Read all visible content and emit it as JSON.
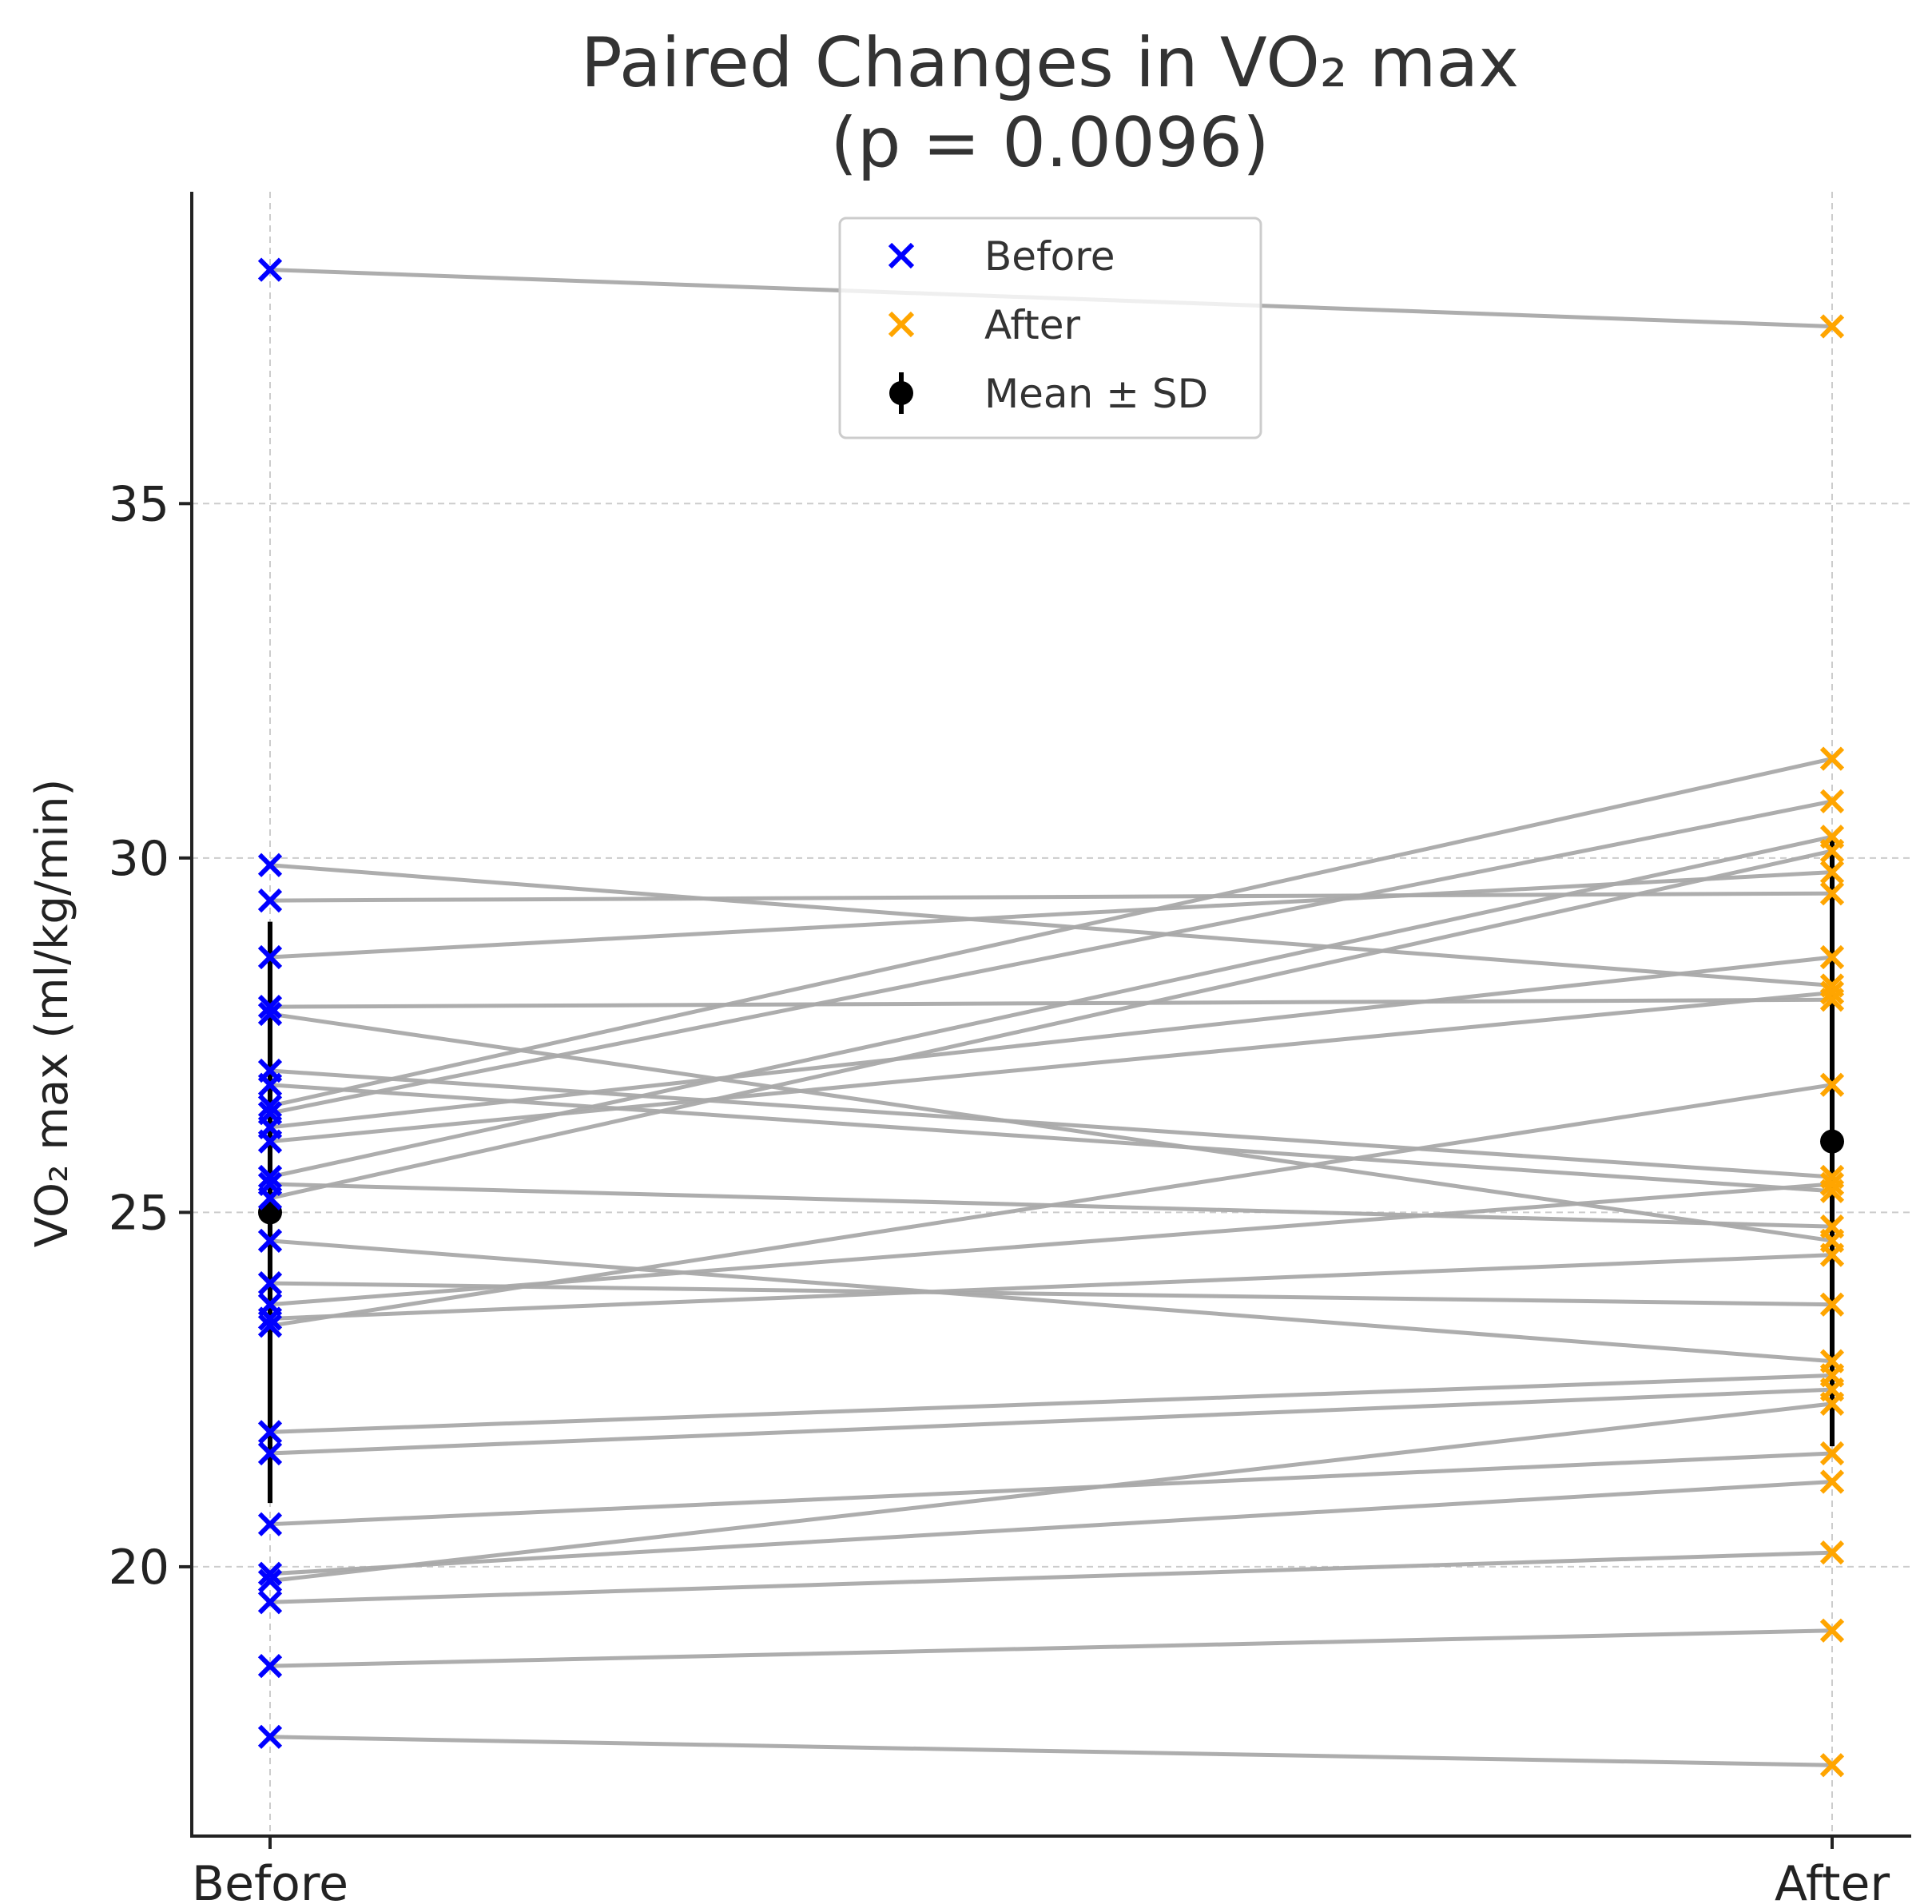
{
  "chart_data": {
    "type": "scatter",
    "title_line1": "Paired Changes in VO₂ max",
    "title_line2": "(p = 0.0096)",
    "ylabel": "VO₂ max (ml/kg/min)",
    "categories": [
      "Before",
      "After"
    ],
    "ylim": [
      16.2,
      39.4
    ],
    "yticks": [
      20,
      25,
      30,
      35
    ],
    "grid": true,
    "legend_position": "top-center",
    "legend": [
      {
        "label": "Before",
        "marker": "x",
        "color": "#0000ff"
      },
      {
        "label": "After",
        "marker": "x",
        "color": "#ffa500"
      },
      {
        "label": "Mean ± SD",
        "marker": "errorbar",
        "color": "#000000"
      }
    ],
    "pairs": [
      {
        "before": 38.3,
        "after": 37.5
      },
      {
        "before": 29.9,
        "after": 28.2
      },
      {
        "before": 29.4,
        "after": 29.5
      },
      {
        "before": 28.6,
        "after": 29.8
      },
      {
        "before": 27.9,
        "after": 28.0
      },
      {
        "before": 27.8,
        "after": 24.6
      },
      {
        "before": 27.0,
        "after": 25.5
      },
      {
        "before": 26.8,
        "after": 25.3
      },
      {
        "before": 26.5,
        "after": 31.4
      },
      {
        "before": 26.4,
        "after": 30.8
      },
      {
        "before": 26.2,
        "after": 28.6
      },
      {
        "before": 26.0,
        "after": 28.1
      },
      {
        "before": 25.5,
        "after": 30.3
      },
      {
        "before": 25.4,
        "after": 24.8
      },
      {
        "before": 25.2,
        "after": 30.1
      },
      {
        "before": 24.6,
        "after": 22.9
      },
      {
        "before": 24.0,
        "after": 23.7
      },
      {
        "before": 23.7,
        "after": 25.4
      },
      {
        "before": 23.5,
        "after": 24.4
      },
      {
        "before": 23.4,
        "after": 26.8
      },
      {
        "before": 21.9,
        "after": 22.7
      },
      {
        "before": 21.6,
        "after": 22.5
      },
      {
        "before": 20.6,
        "after": 21.6
      },
      {
        "before": 19.9,
        "after": 21.2
      },
      {
        "before": 19.8,
        "after": 22.3
      },
      {
        "before": 19.5,
        "after": 20.2
      },
      {
        "before": 18.6,
        "after": 19.1
      },
      {
        "before": 17.6,
        "after": 17.2
      }
    ],
    "mean_sd": [
      {
        "category": "Before",
        "mean": 25.0,
        "sd": 4.1
      },
      {
        "category": "After",
        "mean": 26.0,
        "sd": 4.3
      }
    ]
  }
}
